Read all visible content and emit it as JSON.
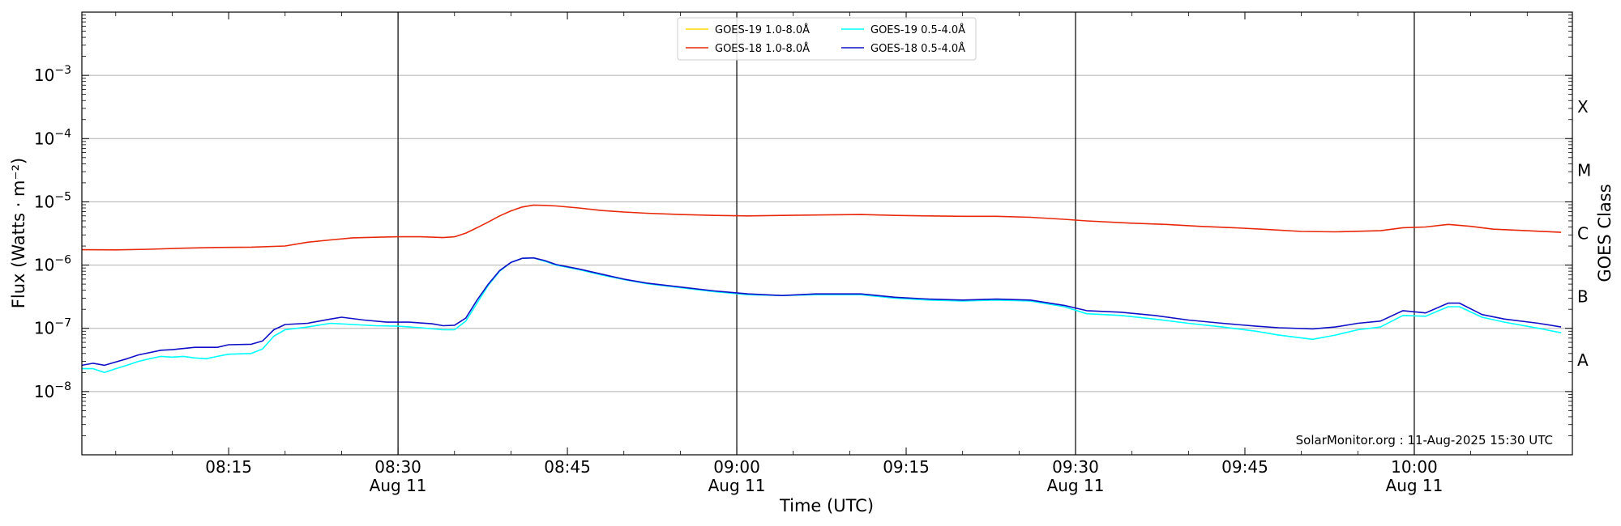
{
  "chart_data": {
    "type": "line",
    "title": "",
    "xlabel": "Time (UTC)",
    "ylabel": "Flux (Watts · m⁻²)",
    "y2label": "GOES Class",
    "y_scale": "log",
    "ylim": [
      1e-09,
      0.01
    ],
    "xlim": [
      "2025-08-11 08:02",
      "2025-08-11 10:14"
    ],
    "x_ticks": [
      {
        "time": "08:15",
        "date": ""
      },
      {
        "time": "08:30",
        "date": "Aug 11"
      },
      {
        "time": "08:45",
        "date": ""
      },
      {
        "time": "09:00",
        "date": "Aug 11"
      },
      {
        "time": "09:15",
        "date": ""
      },
      {
        "time": "09:30",
        "date": "Aug 11"
      },
      {
        "time": "09:45",
        "date": ""
      },
      {
        "time": "10:00",
        "date": "Aug 11"
      }
    ],
    "vlines": [
      "08:30",
      "09:00",
      "09:30",
      "10:00"
    ],
    "y_ticks": [
      {
        "exp": "-8",
        "value": 1e-08
      },
      {
        "exp": "-7",
        "value": 1e-07
      },
      {
        "exp": "-6",
        "value": 1e-06
      },
      {
        "exp": "-5",
        "value": 1e-05
      },
      {
        "exp": "-4",
        "value": 0.0001
      },
      {
        "exp": "-3",
        "value": 0.001
      }
    ],
    "goes_classes": [
      {
        "label": "A",
        "value": 3.16e-08
      },
      {
        "label": "B",
        "value": 3.16e-07
      },
      {
        "label": "C",
        "value": 3.16e-06
      },
      {
        "label": "M",
        "value": 3.16e-05
      },
      {
        "label": "X",
        "value": 0.000316
      }
    ],
    "grid": "horizontal",
    "legend_position": "top-center",
    "credit": "SolarMonitor.org : 11-Aug-2025 15:30 UTC",
    "series": [
      {
        "name": "GOES-19 1.0-8.0Å",
        "color": "#ffd700",
        "points": []
      },
      {
        "name": "GOES-18 1.0-8.0Å",
        "color": "#e8280a",
        "points": [
          [
            "08:02",
            1.75e-06
          ],
          [
            "08:05",
            1.74e-06
          ],
          [
            "08:08",
            1.78e-06
          ],
          [
            "08:11",
            1.85e-06
          ],
          [
            "08:14",
            1.9e-06
          ],
          [
            "08:17",
            1.92e-06
          ],
          [
            "08:20",
            2e-06
          ],
          [
            "08:22",
            2.3e-06
          ],
          [
            "08:24",
            2.5e-06
          ],
          [
            "08:26",
            2.7e-06
          ],
          [
            "08:28",
            2.75e-06
          ],
          [
            "08:30",
            2.8e-06
          ],
          [
            "08:32",
            2.8e-06
          ],
          [
            "08:34",
            2.72e-06
          ],
          [
            "08:35",
            2.8e-06
          ],
          [
            "08:36",
            3.2e-06
          ],
          [
            "08:37",
            3.9e-06
          ],
          [
            "08:38",
            4.8e-06
          ],
          [
            "08:39",
            6e-06
          ],
          [
            "08:40",
            7.2e-06
          ],
          [
            "08:41",
            8.3e-06
          ],
          [
            "08:42",
            8.9e-06
          ],
          [
            "08:43",
            8.8e-06
          ],
          [
            "08:44",
            8.6e-06
          ],
          [
            "08:46",
            8e-06
          ],
          [
            "08:48",
            7.3e-06
          ],
          [
            "08:50",
            6.9e-06
          ],
          [
            "08:52",
            6.6e-06
          ],
          [
            "08:55",
            6.3e-06
          ],
          [
            "08:58",
            6.1e-06
          ],
          [
            "09:01",
            6e-06
          ],
          [
            "09:04",
            6.1e-06
          ],
          [
            "09:07",
            6.2e-06
          ],
          [
            "09:11",
            6.3e-06
          ],
          [
            "09:14",
            6.1e-06
          ],
          [
            "09:17",
            6e-06
          ],
          [
            "09:20",
            5.9e-06
          ],
          [
            "09:23",
            5.9e-06
          ],
          [
            "09:26",
            5.7e-06
          ],
          [
            "09:29",
            5.3e-06
          ],
          [
            "09:31",
            5e-06
          ],
          [
            "09:35",
            4.6e-06
          ],
          [
            "09:38",
            4.4e-06
          ],
          [
            "09:41",
            4.1e-06
          ],
          [
            "09:44",
            3.9e-06
          ],
          [
            "09:47",
            3.65e-06
          ],
          [
            "09:50",
            3.4e-06
          ],
          [
            "09:53",
            3.35e-06
          ],
          [
            "09:57",
            3.5e-06
          ],
          [
            "09:59",
            3.9e-06
          ],
          [
            "10:01",
            4e-06
          ],
          [
            "10:03",
            4.4e-06
          ],
          [
            "10:05",
            4.1e-06
          ],
          [
            "10:07",
            3.7e-06
          ],
          [
            "10:10",
            3.5e-06
          ],
          [
            "10:13",
            3.3e-06
          ]
        ]
      },
      {
        "name": "GOES-19 0.5-4.0Å",
        "color": "#00ffff",
        "points": [
          [
            "08:02",
            2.3e-08
          ],
          [
            "08:03",
            2.3e-08
          ],
          [
            "08:04",
            2e-08
          ],
          [
            "08:05",
            2.3e-08
          ],
          [
            "08:06",
            2.6e-08
          ],
          [
            "08:07",
            3e-08
          ],
          [
            "08:08",
            3.3e-08
          ],
          [
            "08:09",
            3.6e-08
          ],
          [
            "08:10",
            3.5e-08
          ],
          [
            "08:11",
            3.6e-08
          ],
          [
            "08:12",
            3.4e-08
          ],
          [
            "08:13",
            3.3e-08
          ],
          [
            "08:14",
            3.6e-08
          ],
          [
            "08:15",
            3.9e-08
          ],
          [
            "08:17",
            4e-08
          ],
          [
            "08:18",
            4.7e-08
          ],
          [
            "08:19",
            7.5e-08
          ],
          [
            "08:20",
            9.5e-08
          ],
          [
            "08:22",
            1.05e-07
          ],
          [
            "08:24",
            1.2e-07
          ],
          [
            "08:26",
            1.15e-07
          ],
          [
            "08:28",
            1.1e-07
          ],
          [
            "08:30",
            1.08e-07
          ],
          [
            "08:32",
            1.02e-07
          ],
          [
            "08:34",
            9.5e-08
          ],
          [
            "08:35",
            9.5e-08
          ],
          [
            "08:36",
            1.3e-07
          ],
          [
            "08:37",
            2.5e-07
          ],
          [
            "08:38",
            4.8e-07
          ],
          [
            "08:39",
            8e-07
          ],
          [
            "08:40",
            1.1e-06
          ],
          [
            "08:41",
            1.28e-06
          ],
          [
            "08:42",
            1.3e-06
          ],
          [
            "08:43",
            1.15e-06
          ],
          [
            "08:44",
            1e-06
          ],
          [
            "08:46",
            8.5e-07
          ],
          [
            "08:48",
            7e-07
          ],
          [
            "08:50",
            5.9e-07
          ],
          [
            "08:52",
            5.1e-07
          ],
          [
            "08:55",
            4.4e-07
          ],
          [
            "08:58",
            3.8e-07
          ],
          [
            "09:01",
            3.4e-07
          ],
          [
            "09:04",
            3.3e-07
          ],
          [
            "09:07",
            3.4e-07
          ],
          [
            "09:11",
            3.4e-07
          ],
          [
            "09:14",
            3e-07
          ],
          [
            "09:17",
            2.8e-07
          ],
          [
            "09:20",
            2.7e-07
          ],
          [
            "09:23",
            2.8e-07
          ],
          [
            "09:26",
            2.7e-07
          ],
          [
            "09:29",
            2.2e-07
          ],
          [
            "09:31",
            1.7e-07
          ],
          [
            "09:34",
            1.6e-07
          ],
          [
            "09:37",
            1.4e-07
          ],
          [
            "09:40",
            1.2e-07
          ],
          [
            "09:43",
            1.05e-07
          ],
          [
            "09:46",
            9e-08
          ],
          [
            "09:48",
            7.8e-08
          ],
          [
            "09:51",
            6.7e-08
          ],
          [
            "09:53",
            7.8e-08
          ],
          [
            "09:55",
            9.5e-08
          ],
          [
            "09:57",
            1.05e-07
          ],
          [
            "09:59",
            1.6e-07
          ],
          [
            "10:01",
            1.55e-07
          ],
          [
            "10:03",
            2.2e-07
          ],
          [
            "10:04",
            2.2e-07
          ],
          [
            "10:06",
            1.5e-07
          ],
          [
            "10:08",
            1.25e-07
          ],
          [
            "10:11",
            1e-07
          ],
          [
            "10:13",
            8.5e-08
          ]
        ]
      },
      {
        "name": "GOES-18 0.5-4.0Å",
        "color": "#1010c8",
        "points": [
          [
            "08:02",
            2.6e-08
          ],
          [
            "08:03",
            2.8e-08
          ],
          [
            "08:04",
            2.6e-08
          ],
          [
            "08:06",
            3.3e-08
          ],
          [
            "08:07",
            3.8e-08
          ],
          [
            "08:09",
            4.5e-08
          ],
          [
            "08:10",
            4.6e-08
          ],
          [
            "08:12",
            5e-08
          ],
          [
            "08:14",
            5e-08
          ],
          [
            "08:15",
            5.5e-08
          ],
          [
            "08:17",
            5.6e-08
          ],
          [
            "08:18",
            6.3e-08
          ],
          [
            "08:19",
            9.5e-08
          ],
          [
            "08:20",
            1.15e-07
          ],
          [
            "08:22",
            1.2e-07
          ],
          [
            "08:24",
            1.4e-07
          ],
          [
            "08:25",
            1.5e-07
          ],
          [
            "08:27",
            1.35e-07
          ],
          [
            "08:29",
            1.25e-07
          ],
          [
            "08:31",
            1.25e-07
          ],
          [
            "08:33",
            1.18e-07
          ],
          [
            "08:34",
            1.1e-07
          ],
          [
            "08:35",
            1.12e-07
          ],
          [
            "08:36",
            1.45e-07
          ],
          [
            "08:37",
            2.8e-07
          ],
          [
            "08:38",
            5e-07
          ],
          [
            "08:39",
            8.2e-07
          ],
          [
            "08:40",
            1.1e-06
          ],
          [
            "08:41",
            1.28e-06
          ],
          [
            "08:42",
            1.3e-06
          ],
          [
            "08:43",
            1.18e-06
          ],
          [
            "08:44",
            1.02e-06
          ],
          [
            "08:46",
            8.7e-07
          ],
          [
            "08:48",
            7.2e-07
          ],
          [
            "08:50",
            6e-07
          ],
          [
            "08:52",
            5.2e-07
          ],
          [
            "08:55",
            4.5e-07
          ],
          [
            "08:58",
            3.9e-07
          ],
          [
            "09:01",
            3.5e-07
          ],
          [
            "09:04",
            3.3e-07
          ],
          [
            "09:07",
            3.5e-07
          ],
          [
            "09:11",
            3.5e-07
          ],
          [
            "09:14",
            3.1e-07
          ],
          [
            "09:17",
            2.9e-07
          ],
          [
            "09:20",
            2.8e-07
          ],
          [
            "09:23",
            2.9e-07
          ],
          [
            "09:26",
            2.8e-07
          ],
          [
            "09:29",
            2.3e-07
          ],
          [
            "09:31",
            1.9e-07
          ],
          [
            "09:34",
            1.8e-07
          ],
          [
            "09:37",
            1.6e-07
          ],
          [
            "09:40",
            1.35e-07
          ],
          [
            "09:43",
            1.2e-07
          ],
          [
            "09:46",
            1.08e-07
          ],
          [
            "09:48",
            1.02e-07
          ],
          [
            "09:51",
            9.8e-08
          ],
          [
            "09:53",
            1.05e-07
          ],
          [
            "09:55",
            1.2e-07
          ],
          [
            "09:57",
            1.3e-07
          ],
          [
            "09:59",
            1.9e-07
          ],
          [
            "10:01",
            1.75e-07
          ],
          [
            "10:03",
            2.5e-07
          ],
          [
            "10:04",
            2.5e-07
          ],
          [
            "10:06",
            1.65e-07
          ],
          [
            "10:08",
            1.4e-07
          ],
          [
            "10:11",
            1.2e-07
          ],
          [
            "10:13",
            1.05e-07
          ]
        ]
      }
    ]
  }
}
